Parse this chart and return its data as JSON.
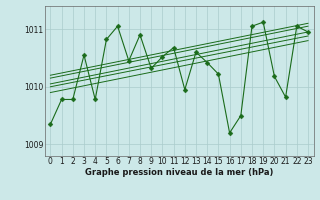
{
  "xlabel": "Graphe pression niveau de la mer (hPa)",
  "bg_color": "#cce8e8",
  "grid_color": "#aacccc",
  "line_color": "#1a6b1a",
  "marker_color": "#1a6b1a",
  "ylim": [
    1008.8,
    1011.4
  ],
  "xlim": [
    -0.5,
    23.5
  ],
  "yticks": [
    1009,
    1010,
    1011
  ],
  "xticks": [
    0,
    1,
    2,
    3,
    4,
    5,
    6,
    7,
    8,
    9,
    10,
    11,
    12,
    13,
    14,
    15,
    16,
    17,
    18,
    19,
    20,
    21,
    22,
    23
  ],
  "trend_lines": [
    [
      [
        0,
        23
      ],
      [
        1009.9,
        1010.8
      ]
    ],
    [
      [
        0,
        23
      ],
      [
        1010.0,
        1010.88
      ]
    ],
    [
      [
        0,
        23
      ],
      [
        1010.05,
        1010.95
      ]
    ],
    [
      [
        0,
        23
      ],
      [
        1010.15,
        1011.05
      ]
    ],
    [
      [
        0,
        23
      ],
      [
        1010.2,
        1011.1
      ]
    ]
  ],
  "main_series_x": [
    0,
    1,
    2,
    3,
    4,
    5,
    6,
    7,
    8,
    9,
    10,
    11,
    12,
    13,
    14,
    15,
    16,
    17,
    18,
    19,
    20,
    21,
    22,
    23
  ],
  "main_series_y": [
    1009.35,
    1009.78,
    1009.78,
    1010.55,
    1009.78,
    1010.82,
    1011.05,
    1010.45,
    1010.9,
    1010.32,
    1010.52,
    1010.68,
    1009.95,
    1010.6,
    1010.42,
    1010.22,
    1009.2,
    1009.5,
    1011.05,
    1011.12,
    1010.18,
    1009.82,
    1011.05,
    1010.95
  ]
}
